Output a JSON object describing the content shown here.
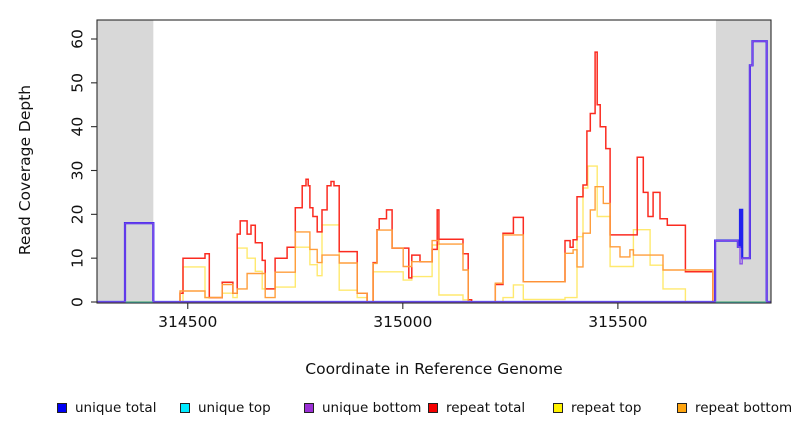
{
  "chart_data": {
    "type": "line",
    "subtype": "step-coverage",
    "title": "",
    "xlabel": "Coordinate in Reference Genome",
    "ylabel": "Read Coverage Depth",
    "xlim": [
      314289,
      315856
    ],
    "ylim": [
      0,
      62
    ],
    "x_ticks": [
      314500,
      315000,
      315500
    ],
    "y_ticks": [
      0,
      10,
      20,
      30,
      40,
      50,
      60
    ],
    "grid": false,
    "legend_position": "bottom",
    "masked_region_color": "#d8d8d8",
    "masked_regions": [
      {
        "x0": 314289,
        "x1": 314420
      },
      {
        "x0": 315728,
        "x1": 315856
      }
    ],
    "series": [
      {
        "name": "repeat top",
        "color": "#ffe96e",
        "width": 1.4,
        "points": [
          [
            314289,
            0
          ],
          [
            314489,
            8
          ],
          [
            314540,
            1
          ],
          [
            314580,
            2
          ],
          [
            314605,
            1
          ],
          [
            314615,
            12.3
          ],
          [
            314638,
            10
          ],
          [
            314657,
            7
          ],
          [
            314673,
            3
          ],
          [
            314703,
            3.4
          ],
          [
            314750,
            12.5
          ],
          [
            314784,
            8.5
          ],
          [
            314801,
            6
          ],
          [
            314812,
            17.6
          ],
          [
            314852,
            2.7
          ],
          [
            314894,
            1
          ],
          [
            314917,
            0
          ],
          [
            314931,
            6.9
          ],
          [
            315001,
            5
          ],
          [
            315021,
            5.8
          ],
          [
            315068,
            13
          ],
          [
            315084,
            1.6
          ],
          [
            315140,
            0.5
          ],
          [
            315160,
            0
          ],
          [
            315233,
            1
          ],
          [
            315257,
            3.9
          ],
          [
            315280,
            0.6
          ],
          [
            315377,
            1
          ],
          [
            315405,
            14.9
          ],
          [
            315419,
            26
          ],
          [
            315430,
            31
          ],
          [
            315452,
            19.5
          ],
          [
            315482,
            8.1
          ],
          [
            315536,
            16.5
          ],
          [
            315575,
            8.4
          ],
          [
            315605,
            3
          ],
          [
            315657,
            0
          ]
        ]
      },
      {
        "name": "repeat total",
        "color": "#fb2b20",
        "width": 1.5,
        "points": [
          [
            314289,
            0
          ],
          [
            314482,
            2
          ],
          [
            314489,
            10
          ],
          [
            314540,
            11
          ],
          [
            314550,
            1
          ],
          [
            314580,
            4.5
          ],
          [
            314605,
            2
          ],
          [
            314615,
            15.5
          ],
          [
            314622,
            18.5
          ],
          [
            314638,
            15.5
          ],
          [
            314647,
            17.5
          ],
          [
            314657,
            13.5
          ],
          [
            314673,
            9.5
          ],
          [
            314680,
            3
          ],
          [
            314703,
            10
          ],
          [
            314731,
            12.5
          ],
          [
            314750,
            21.5
          ],
          [
            314766,
            26.5
          ],
          [
            314775,
            28
          ],
          [
            314780,
            26.5
          ],
          [
            314784,
            21.5
          ],
          [
            314791,
            19.5
          ],
          [
            314801,
            16
          ],
          [
            314812,
            21
          ],
          [
            314824,
            26.5
          ],
          [
            314833,
            27.5
          ],
          [
            314840,
            26.5
          ],
          [
            314852,
            11.5
          ],
          [
            314894,
            2
          ],
          [
            314917,
            0
          ],
          [
            314931,
            9
          ],
          [
            314940,
            16.5
          ],
          [
            314945,
            19
          ],
          [
            314962,
            21
          ],
          [
            314975,
            12.3
          ],
          [
            315014,
            5.5
          ],
          [
            315021,
            10.7
          ],
          [
            315040,
            9.2
          ],
          [
            315068,
            12
          ],
          [
            315080,
            21
          ],
          [
            315084,
            14.3
          ],
          [
            315140,
            11
          ],
          [
            315152,
            0.5
          ],
          [
            315160,
            0
          ],
          [
            315215,
            4
          ],
          [
            315233,
            15.7
          ],
          [
            315257,
            19.3
          ],
          [
            315280,
            4.6
          ],
          [
            315377,
            14
          ],
          [
            315389,
            12.5
          ],
          [
            315396,
            14.2
          ],
          [
            315405,
            24
          ],
          [
            315419,
            26.7
          ],
          [
            315428,
            39
          ],
          [
            315436,
            43
          ],
          [
            315447,
            57
          ],
          [
            315452,
            45
          ],
          [
            315459,
            40
          ],
          [
            315472,
            35
          ],
          [
            315482,
            15.3
          ],
          [
            315545,
            33
          ],
          [
            315559,
            25
          ],
          [
            315570,
            19.5
          ],
          [
            315582,
            25
          ],
          [
            315598,
            19
          ],
          [
            315615,
            17.5
          ],
          [
            315657,
            6.9
          ],
          [
            315721,
            0
          ]
        ]
      },
      {
        "name": "repeat bottom",
        "color": "#ff9e3c",
        "width": 1.4,
        "points": [
          [
            314289,
            0
          ],
          [
            314482,
            2.5
          ],
          [
            314540,
            1
          ],
          [
            314580,
            4
          ],
          [
            314605,
            2
          ],
          [
            314615,
            3
          ],
          [
            314638,
            6.5
          ],
          [
            314680,
            1
          ],
          [
            314703,
            6.8
          ],
          [
            314750,
            16
          ],
          [
            314784,
            12
          ],
          [
            314801,
            9
          ],
          [
            314812,
            10.7
          ],
          [
            314852,
            8.9
          ],
          [
            314894,
            2
          ],
          [
            314917,
            0
          ],
          [
            314931,
            8.8
          ],
          [
            314940,
            16.4
          ],
          [
            314975,
            12.3
          ],
          [
            315001,
            8.1
          ],
          [
            315021,
            9.2
          ],
          [
            315068,
            14
          ],
          [
            315084,
            13.2
          ],
          [
            315140,
            7.3
          ],
          [
            315152,
            0
          ],
          [
            315215,
            4.3
          ],
          [
            315233,
            15.3
          ],
          [
            315280,
            4.6
          ],
          [
            315377,
            11.1
          ],
          [
            315396,
            11.9
          ],
          [
            315405,
            8
          ],
          [
            315419,
            15.7
          ],
          [
            315436,
            21
          ],
          [
            315447,
            26.3
          ],
          [
            315466,
            22.5
          ],
          [
            315482,
            12.6
          ],
          [
            315505,
            10.3
          ],
          [
            315528,
            11.9
          ],
          [
            315536,
            10.7
          ],
          [
            315605,
            7.3
          ],
          [
            315721,
            0
          ]
        ]
      },
      {
        "name": "unique total",
        "color": "#2222ee",
        "width": 2.2,
        "points": [
          [
            314289,
            0
          ],
          [
            314354,
            18
          ],
          [
            314420,
            0
          ],
          [
            315726,
            14
          ],
          [
            315779,
            12.6
          ],
          [
            315784,
            21
          ],
          [
            315789,
            10
          ],
          [
            315807,
            54
          ],
          [
            315813,
            59.5
          ],
          [
            315846,
            0
          ]
        ]
      },
      {
        "name": "unique top",
        "color": "#43d8cf",
        "width": 1.2,
        "points": [
          [
            314289,
            0
          ]
        ]
      },
      {
        "name": "unique bottom",
        "color": "#8448e8",
        "width": 1.3,
        "points": [
          [
            314289,
            0
          ],
          [
            314354,
            18
          ],
          [
            314420,
            0
          ],
          [
            315726,
            14
          ],
          [
            315779,
            12.6
          ],
          [
            315784,
            8.7
          ],
          [
            315789,
            10
          ],
          [
            315807,
            54
          ],
          [
            315813,
            59.5
          ],
          [
            315846,
            0
          ]
        ]
      }
    ]
  },
  "axes": {
    "x_label": "Coordinate in Reference Genome",
    "y_label": "Read Coverage Depth",
    "x_tick_labels": [
      "314500",
      "315000",
      "315500"
    ],
    "y_tick_labels": [
      "0",
      "10",
      "20",
      "30",
      "40",
      "50",
      "60"
    ]
  },
  "legend": {
    "items": [
      {
        "label": "unique total",
        "color": "#0000f5"
      },
      {
        "label": "unique top",
        "color": "#00eaff"
      },
      {
        "label": "unique bottom",
        "color": "#9b30d5"
      },
      {
        "label": "repeat total",
        "color": "#f50000"
      },
      {
        "label": "repeat top",
        "color": "#fff200"
      },
      {
        "label": "repeat bottom",
        "color": "#ffa510"
      }
    ]
  }
}
